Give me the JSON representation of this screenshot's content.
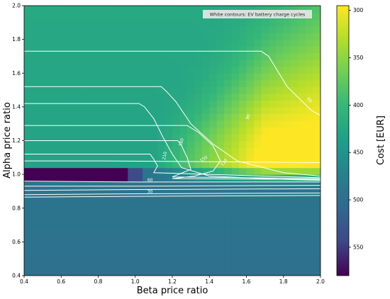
{
  "chart_data": {
    "type": "heatmap",
    "title": "",
    "xlabel": "Beta price ratio",
    "ylabel": "Alpha price ratio",
    "xlim": [
      0.4,
      2.0
    ],
    "ylim": [
      0.4,
      2.0
    ],
    "xticks": [
      "0.4",
      "0.6",
      "0.8",
      "1.0",
      "1.2",
      "1.4",
      "1.6",
      "1.8",
      "2.0"
    ],
    "yticks": [
      "0.4",
      "0.6",
      "0.8",
      "1.0",
      "1.2",
      "1.4",
      "1.6",
      "1.8",
      "2.0"
    ],
    "colorbar": {
      "label": "Cost [EUR]",
      "range": [
        580,
        295
      ],
      "ticks": [
        "300",
        "350",
        "400",
        "450",
        "500",
        "550"
      ],
      "colormap": "viridis"
    },
    "annotation": "White contours: EV battery charge cycles",
    "contour_levels": [
      "30",
      "60",
      "90",
      "120",
      "150",
      "180",
      "210"
    ],
    "grid": false,
    "cost_field_description_values": {
      "background_alpha_above_1_1": 430,
      "background_alpha_below_1": 490,
      "min_region_value": 580,
      "max_region_value": 300
    }
  }
}
